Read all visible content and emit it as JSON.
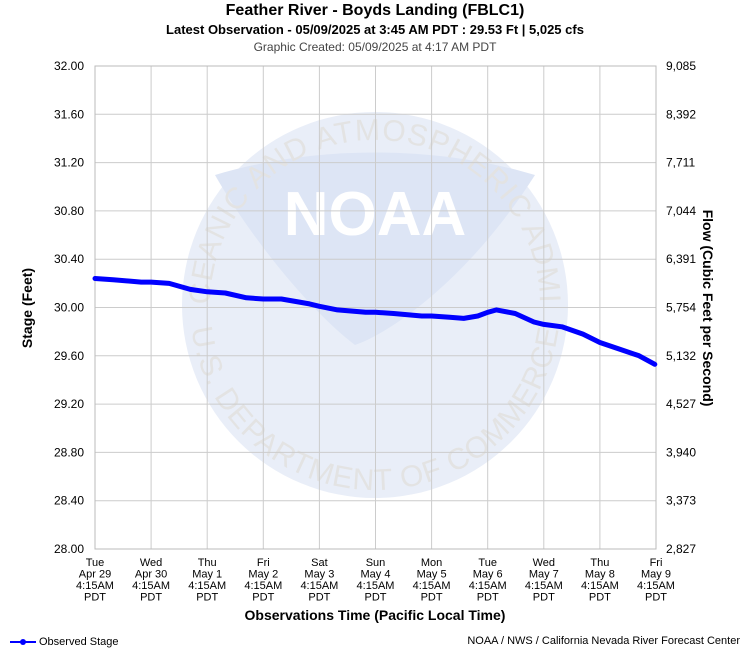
{
  "header": {
    "title": "Feather River - Boyds Landing (FBLC1)",
    "latest": "Latest Observation - 05/09/2025 at 3:45 AM PDT : 29.53 Ft | 5,025 cfs",
    "created": "Graphic Created: 05/09/2025 at 4:17 AM PDT"
  },
  "legend": {
    "label": "Observed Stage"
  },
  "credit": "NOAA / NWS / California Nevada River Forecast Center",
  "watermark": {
    "logo_text": "NOAA",
    "ring_top": "NATIONAL OCEANIC AND ATMOSPHERIC ADMINISTRATION",
    "ring_bottom": "U.S. DEPARTMENT OF COMMERCE"
  },
  "colors": {
    "series": "#0000ff",
    "grid": "#cccccc",
    "watermark": "#e9eef8"
  },
  "chart_data": {
    "type": "line",
    "xlabel": "Observations Time (Pacific Local Time)",
    "ylabel": "Stage (Feet)",
    "y2label": "Flow (Cubic Feet per Second)",
    "ylim": [
      28.0,
      32.0
    ],
    "yticks": [
      "28.00",
      "28.40",
      "28.80",
      "29.20",
      "29.60",
      "30.00",
      "30.40",
      "30.80",
      "31.20",
      "31.60",
      "32.00"
    ],
    "y2ticks": [
      "2,827",
      "3,373",
      "3,940",
      "4,527",
      "5,132",
      "5,754",
      "6,391",
      "7,044",
      "7,711",
      "8,392",
      "9,085"
    ],
    "xticks": [
      [
        "Tue",
        "Apr 29",
        "4:15AM",
        "PDT"
      ],
      [
        "Wed",
        "Apr 30",
        "4:15AM",
        "PDT"
      ],
      [
        "Thu",
        "May 1",
        "4:15AM",
        "PDT"
      ],
      [
        "Fri",
        "May 2",
        "4:15AM",
        "PDT"
      ],
      [
        "Sat",
        "May 3",
        "4:15AM",
        "PDT"
      ],
      [
        "Sun",
        "May 4",
        "4:15AM",
        "PDT"
      ],
      [
        "Mon",
        "May 5",
        "4:15AM",
        "PDT"
      ],
      [
        "Tue",
        "May 6",
        "4:15AM",
        "PDT"
      ],
      [
        "Wed",
        "May 7",
        "4:15AM",
        "PDT"
      ],
      [
        "Thu",
        "May 8",
        "4:15AM",
        "PDT"
      ],
      [
        "Fri",
        "May 9",
        "4:15AM",
        "PDT"
      ]
    ],
    "grid": true,
    "legend_position": "bottom-left",
    "series": [
      {
        "name": "Observed Stage",
        "x": [
          "2025-04-29 04:15",
          "2025-04-29 12:00",
          "2025-04-30 00:00",
          "2025-04-30 04:15",
          "2025-04-30 12:00",
          "2025-04-30 21:00",
          "2025-05-01 04:15",
          "2025-05-01 12:00",
          "2025-05-01 21:00",
          "2025-05-02 04:15",
          "2025-05-02 12:00",
          "2025-05-03 00:00",
          "2025-05-03 04:15",
          "2025-05-03 12:00",
          "2025-05-04 00:00",
          "2025-05-04 04:15",
          "2025-05-04 12:00",
          "2025-05-05 00:00",
          "2025-05-05 04:15",
          "2025-05-05 12:00",
          "2025-05-05 18:00",
          "2025-05-06 00:00",
          "2025-05-06 04:15",
          "2025-05-06 08:00",
          "2025-05-06 16:00",
          "2025-05-07 00:00",
          "2025-05-07 04:15",
          "2025-05-07 12:00",
          "2025-05-07 21:00",
          "2025-05-08 04:15",
          "2025-05-08 12:00",
          "2025-05-08 21:00",
          "2025-05-09 03:45"
        ],
        "y": [
          30.24,
          30.23,
          30.21,
          30.21,
          30.2,
          30.15,
          30.13,
          30.12,
          30.08,
          30.07,
          30.07,
          30.03,
          30.01,
          29.98,
          29.96,
          29.96,
          29.95,
          29.93,
          29.93,
          29.92,
          29.91,
          29.93,
          29.96,
          29.98,
          29.95,
          29.88,
          29.86,
          29.84,
          29.78,
          29.71,
          29.66,
          29.6,
          29.53
        ]
      }
    ]
  }
}
